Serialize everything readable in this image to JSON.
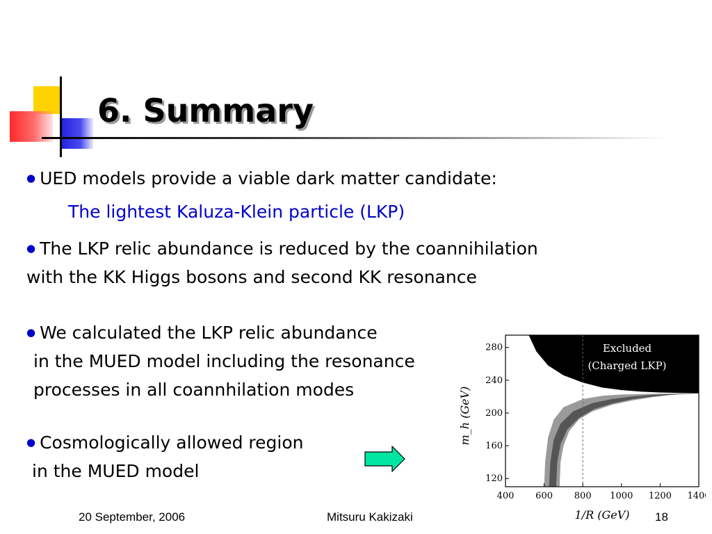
{
  "title": "6. Summary",
  "bullets": [
    {
      "text": "UED models provide a viable dark matter candidate:",
      "sub": "The lightest Kaluza-Klein particle (LKP)"
    },
    {
      "line1": "The LKP relic abundance is reduced by the coannihilation",
      "line2": "with the KK Higgs bosons and second KK resonance"
    },
    {
      "line1": "We calculated the LKP relic abundance",
      "line2": "in the MUED model including the resonance",
      "line3": "processes in all coannhilation modes"
    },
    {
      "line1": "Cosmologically allowed region",
      "line2": "in the MUED model"
    }
  ],
  "footer": {
    "date": "20 September, 2006",
    "author": "Mitsuru Kakizaki",
    "page": "18"
  },
  "colors": {
    "bullet": "#0000cc",
    "arrow_fill": "#00e5a0"
  },
  "chart_data": {
    "type": "area",
    "x_label": "1/R (GeV)",
    "y_label": "m_h (GeV)",
    "xlim": [
      400,
      1400
    ],
    "ylim": [
      110,
      295
    ],
    "x_ticks": [
      "400",
      "600",
      "800",
      "1000",
      "1200",
      "1400"
    ],
    "y_ticks": [
      "120",
      "160",
      "200",
      "240",
      "280"
    ],
    "x_tick_values": [
      400,
      600,
      800,
      1000,
      1200,
      1400
    ],
    "y_tick_values": [
      120,
      160,
      200,
      240,
      280
    ],
    "reference_line_x": 800,
    "excluded_label_line1": "Excluded",
    "excluded_label_line2": "(Charged LKP)",
    "excluded_boundary": [
      [
        520,
        295
      ],
      [
        560,
        275
      ],
      [
        620,
        258
      ],
      [
        700,
        246
      ],
      [
        800,
        237
      ],
      [
        900,
        231
      ],
      [
        1000,
        228
      ],
      [
        1100,
        226
      ],
      [
        1200,
        225
      ],
      [
        1300,
        224.5
      ],
      [
        1400,
        224
      ]
    ],
    "outer_band_left": [
      [
        600,
        110
      ],
      [
        605,
        140
      ],
      [
        620,
        170
      ],
      [
        650,
        192
      ],
      [
        700,
        207
      ],
      [
        800,
        217
      ],
      [
        900,
        221
      ],
      [
        1000,
        222.5
      ],
      [
        1100,
        223
      ],
      [
        1200,
        223.5
      ],
      [
        1400,
        224
      ]
    ],
    "outer_band_right": [
      [
        680,
        110
      ],
      [
        685,
        140
      ],
      [
        700,
        160
      ],
      [
        730,
        178
      ],
      [
        780,
        192
      ],
      [
        850,
        202
      ],
      [
        950,
        210
      ],
      [
        1050,
        215
      ],
      [
        1150,
        219
      ],
      [
        1250,
        222
      ],
      [
        1400,
        224
      ]
    ],
    "inner_band_left": [
      [
        625,
        110
      ],
      [
        632,
        140
      ],
      [
        650,
        168
      ],
      [
        685,
        187
      ],
      [
        750,
        202
      ],
      [
        850,
        212
      ],
      [
        950,
        217
      ],
      [
        1050,
        220
      ],
      [
        1150,
        222
      ],
      [
        1300,
        223.5
      ],
      [
        1400,
        224
      ]
    ],
    "inner_band_right": [
      [
        662,
        110
      ],
      [
        668,
        140
      ],
      [
        685,
        162
      ],
      [
        720,
        180
      ],
      [
        780,
        194
      ],
      [
        860,
        205
      ],
      [
        960,
        212
      ],
      [
        1060,
        217
      ],
      [
        1160,
        220
      ],
      [
        1300,
        223
      ],
      [
        1400,
        224
      ]
    ]
  }
}
